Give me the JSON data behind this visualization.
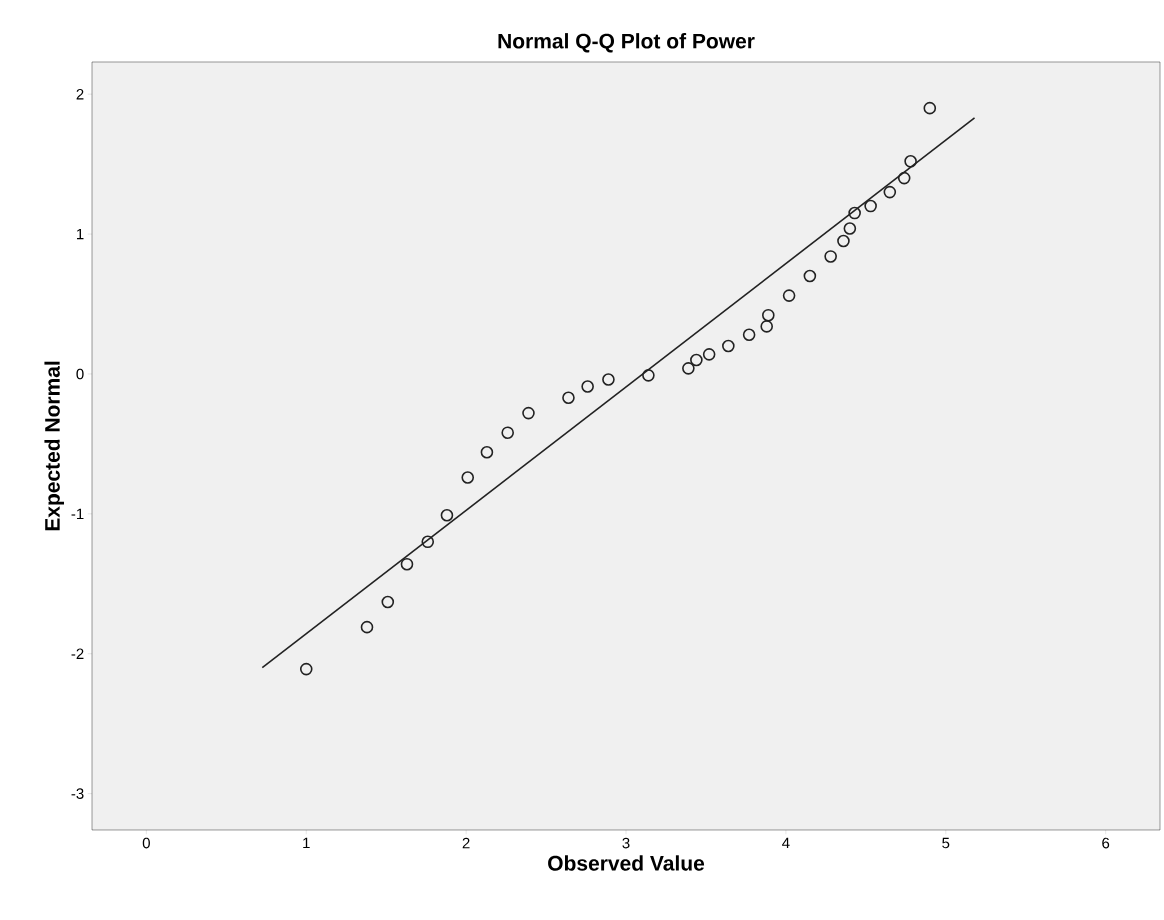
{
  "chart_data": {
    "type": "scatter",
    "title": "Normal Q-Q Plot of Power",
    "xlabel": "Observed Value",
    "ylabel": "Expected Normal",
    "xlim": [
      -0.34,
      6.34
    ],
    "ylim": [
      -3.26,
      2.23
    ],
    "xticks": [
      0,
      1,
      2,
      3,
      4,
      5,
      6
    ],
    "yticks": [
      -3,
      -2,
      -1,
      0,
      1,
      2
    ],
    "grid": false,
    "series": [
      {
        "marker": "circle",
        "color": "#222222",
        "x": [
          1.0,
          1.38,
          1.51,
          1.63,
          1.76,
          1.88,
          2.01,
          2.13,
          2.26,
          2.39,
          2.64,
          2.76,
          2.89,
          3.14,
          3.39,
          3.44,
          3.52,
          3.64,
          3.77,
          3.88,
          3.89,
          4.02,
          4.15,
          4.28,
          4.36,
          4.4,
          4.43,
          4.53,
          4.65,
          4.74,
          4.78,
          4.9
        ],
        "values": [
          -2.11,
          -1.81,
          -1.63,
          -1.36,
          -1.2,
          -1.01,
          -0.74,
          -0.56,
          -0.42,
          -0.28,
          -0.17,
          -0.09,
          -0.04,
          -0.01,
          0.04,
          0.1,
          0.14,
          0.2,
          0.28,
          0.34,
          0.42,
          0.56,
          0.7,
          0.84,
          0.95,
          1.04,
          1.15,
          1.2,
          1.3,
          1.4,
          1.52,
          1.9
        ]
      },
      {
        "type": "line",
        "marker": "none",
        "color": "#222222",
        "x": [
          0.725,
          5.18
        ],
        "values": [
          -2.1,
          1.83
        ]
      }
    ]
  }
}
